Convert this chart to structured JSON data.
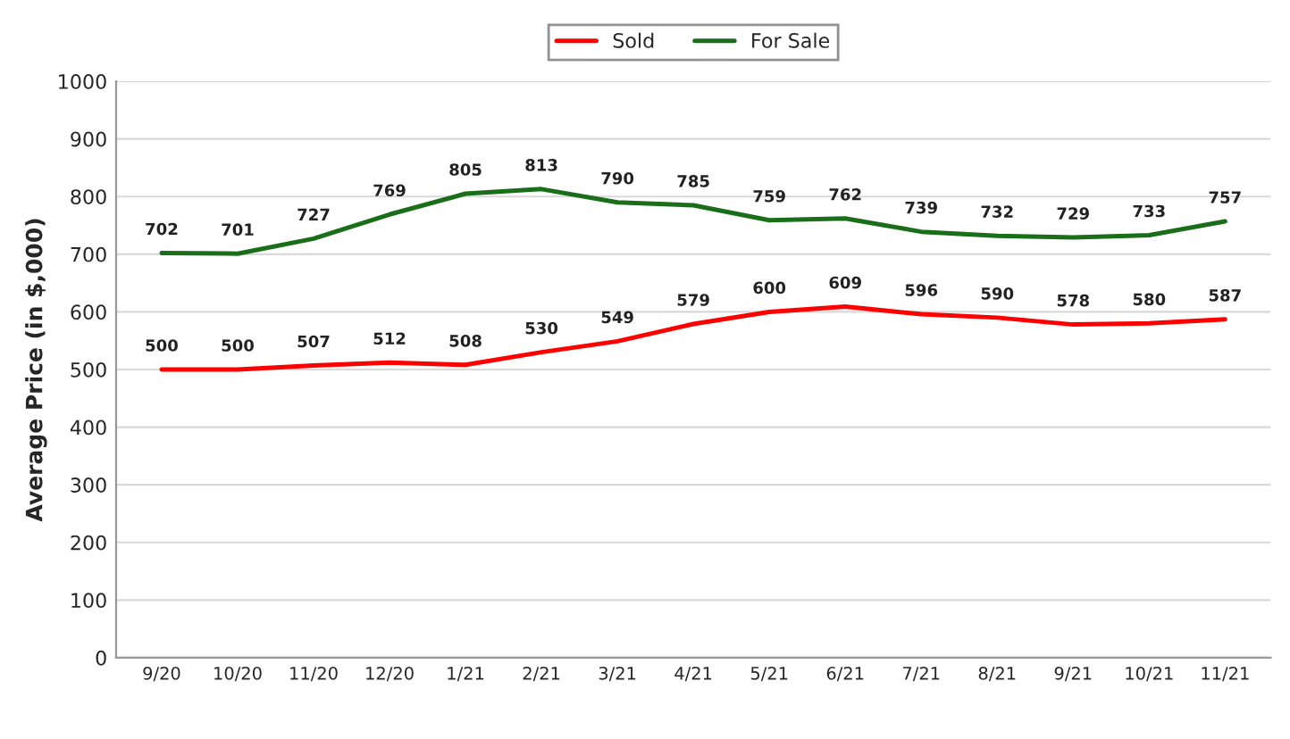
{
  "chart_data": {
    "type": "line",
    "ylabel": "Average Price (in $,000)",
    "categories": [
      "9/20",
      "10/20",
      "11/20",
      "12/20",
      "1/21",
      "2/21",
      "3/21",
      "4/21",
      "5/21",
      "6/21",
      "7/21",
      "8/21",
      "9/21",
      "10/21",
      "11/21"
    ],
    "series": [
      {
        "name": "Sold",
        "color": "#ff0000",
        "values": [
          500,
          500,
          507,
          512,
          508,
          530,
          549,
          579,
          600,
          609,
          596,
          590,
          578,
          580,
          587
        ]
      },
      {
        "name": "For Sale",
        "color": "#1a6e1a",
        "values": [
          702,
          701,
          727,
          769,
          805,
          813,
          790,
          785,
          759,
          762,
          739,
          732,
          729,
          733,
          757
        ]
      }
    ],
    "ylim": [
      0,
      1000
    ],
    "yticks": [
      0,
      100,
      200,
      300,
      400,
      500,
      600,
      700,
      800,
      900,
      1000
    ],
    "grid": "y",
    "legend": "top",
    "data_labels": true,
    "marker": "none",
    "line_style": "solid"
  }
}
